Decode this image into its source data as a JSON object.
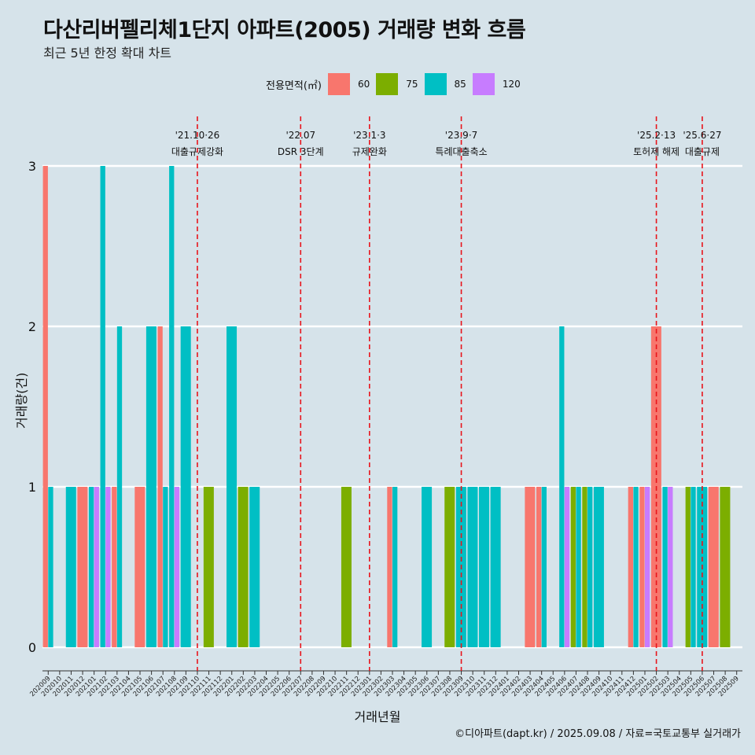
{
  "header": {
    "title": "다산리버펠리체1단지 아파트(2005) 거래량 변화 흐름",
    "subtitle": "최근 5년 한정 확대 차트"
  },
  "legend": {
    "title": "전용면적(㎡)",
    "items": [
      {
        "label": "60",
        "color": "#F8766D"
      },
      {
        "label": "75",
        "color": "#7CAE00"
      },
      {
        "label": "85",
        "color": "#00BFC4"
      },
      {
        "label": "120",
        "color": "#C77CFF"
      }
    ]
  },
  "caption": "©디아파트(dapt.kr) / 2025.09.08 / 자료=국토교통부 실거래가",
  "chart_data": {
    "type": "bar",
    "title": "다산리버펠리체1단지 아파트(2005) 거래량 변화 흐름",
    "subtitle": "최근 5년 한정 확대 차트",
    "xlabel": "거래년월",
    "ylabel": "거래량(건)",
    "ylim": [
      0,
      3
    ],
    "yticks": [
      0,
      1,
      2,
      3
    ],
    "grid": true,
    "legend_position": "top",
    "categories": [
      "202009",
      "202010",
      "202011",
      "202012",
      "202101",
      "202102",
      "202103",
      "202104",
      "202105",
      "202106",
      "202107",
      "202108",
      "202109",
      "202110",
      "202111",
      "202112",
      "202201",
      "202202",
      "202203",
      "202204",
      "202205",
      "202206",
      "202207",
      "202208",
      "202209",
      "202210",
      "202211",
      "202212",
      "202301",
      "202302",
      "202303",
      "202304",
      "202305",
      "202306",
      "202307",
      "202308",
      "202309",
      "202310",
      "202311",
      "202312",
      "202401",
      "202402",
      "202403",
      "202404",
      "202405",
      "202406",
      "202407",
      "202408",
      "202409",
      "202410",
      "202411",
      "202412",
      "202501",
      "202502",
      "202503",
      "202504",
      "202505",
      "202506",
      "202507",
      "202508",
      "202509"
    ],
    "series": [
      {
        "name": "60",
        "color": "#F8766D",
        "values": [
          3,
          0,
          0,
          1,
          0,
          0,
          1,
          0,
          1,
          0,
          2,
          0,
          0,
          0,
          0,
          0,
          0,
          0,
          0,
          0,
          0,
          0,
          0,
          0,
          0,
          0,
          0,
          0,
          0,
          0,
          1,
          0,
          0,
          0,
          0,
          0,
          0,
          0,
          0,
          0,
          0,
          0,
          1,
          1,
          0,
          0,
          0,
          0,
          0,
          0,
          0,
          1,
          1,
          2,
          0,
          0,
          0,
          0,
          1,
          0,
          0
        ]
      },
      {
        "name": "75",
        "color": "#7CAE00",
        "values": [
          0,
          0,
          0,
          0,
          0,
          0,
          0,
          0,
          0,
          0,
          0,
          0,
          0,
          0,
          1,
          0,
          0,
          1,
          0,
          0,
          0,
          0,
          0,
          0,
          0,
          0,
          1,
          0,
          0,
          0,
          0,
          0,
          0,
          0,
          0,
          1,
          0,
          0,
          0,
          0,
          0,
          0,
          0,
          0,
          0,
          0,
          1,
          1,
          0,
          0,
          0,
          0,
          0,
          0,
          0,
          0,
          1,
          0,
          0,
          1,
          0
        ]
      },
      {
        "name": "85",
        "color": "#00BFC4",
        "values": [
          1,
          0,
          1,
          0,
          1,
          3,
          2,
          0,
          0,
          2,
          1,
          3,
          2,
          0,
          0,
          0,
          2,
          0,
          1,
          0,
          0,
          0,
          0,
          0,
          0,
          0,
          0,
          0,
          0,
          0,
          1,
          0,
          0,
          1,
          0,
          0,
          1,
          1,
          1,
          1,
          0,
          0,
          0,
          1,
          0,
          2,
          1,
          1,
          1,
          0,
          0,
          1,
          0,
          0,
          1,
          0,
          1,
          1,
          0,
          0,
          0
        ]
      },
      {
        "name": "120",
        "color": "#C77CFF",
        "values": [
          0,
          0,
          0,
          0,
          1,
          1,
          0,
          0,
          0,
          0,
          0,
          1,
          0,
          0,
          0,
          0,
          0,
          0,
          0,
          0,
          0,
          0,
          0,
          0,
          0,
          0,
          0,
          0,
          0,
          0,
          0,
          0,
          0,
          0,
          0,
          0,
          0,
          0,
          0,
          0,
          0,
          0,
          0,
          0,
          0,
          1,
          0,
          0,
          0,
          0,
          0,
          0,
          1,
          0,
          1,
          0,
          0,
          0,
          0,
          0,
          0
        ]
      }
    ],
    "annotations": [
      {
        "x": "202110",
        "date": "'21.10·26",
        "label": "대출규제강화"
      },
      {
        "x": "202207",
        "date": "'22.07",
        "label": "DSR 3단계"
      },
      {
        "x": "202301",
        "date": "'23.1·3",
        "label": "규제완화"
      },
      {
        "x": "202309",
        "date": "'23.9·7",
        "label": "특례대출축소"
      },
      {
        "x": "202502",
        "date": "'25.2·13",
        "label": "토허제 해제"
      },
      {
        "x": "202506",
        "date": "'25.6·27",
        "label": "대출규제"
      }
    ]
  }
}
